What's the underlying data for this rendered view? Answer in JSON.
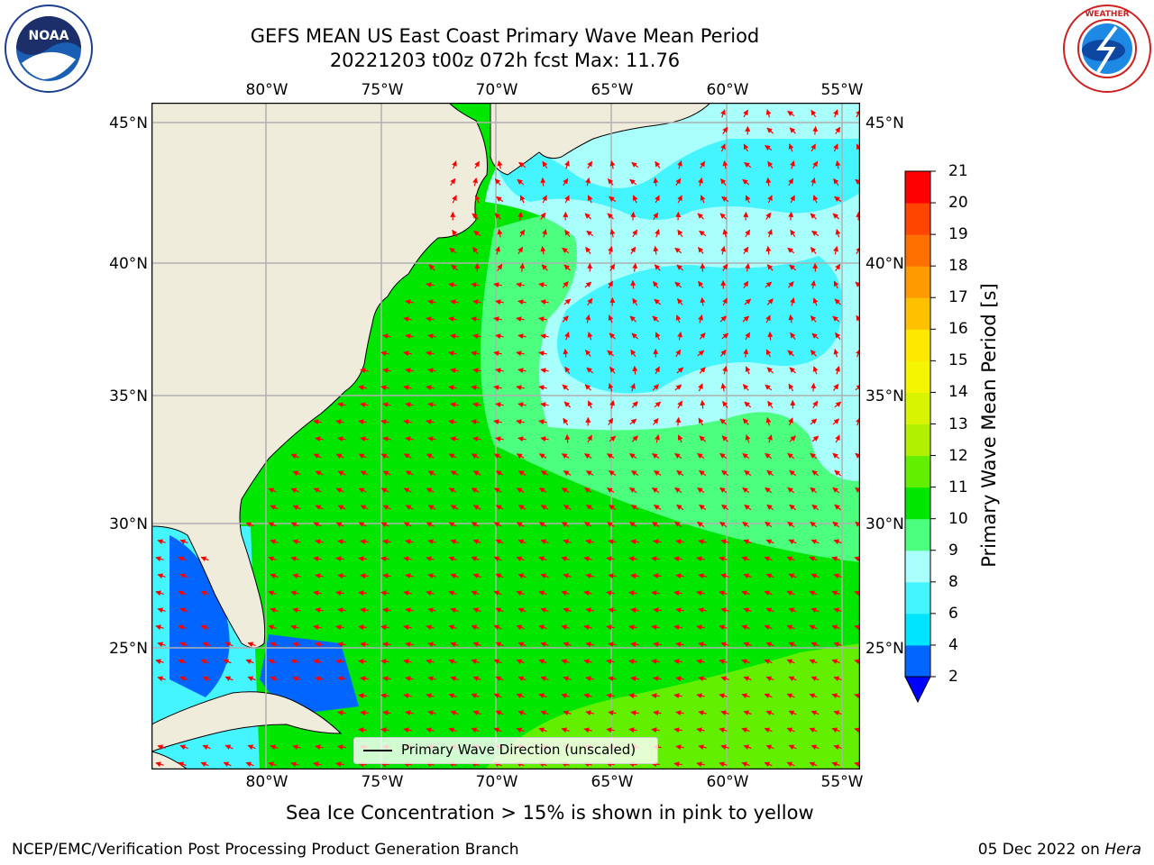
{
  "header": {
    "title_line1": "GEFS MEAN US East Coast Primary Wave Mean Period",
    "title_line2": "20221203 t00z 072h fcst   Max: 11.76"
  },
  "logos": {
    "left": "noaa-logo",
    "right": "nws-logo"
  },
  "map": {
    "lon_labels": [
      "80°W",
      "75°W",
      "70°W",
      "65°W",
      "60°W",
      "55°W"
    ],
    "lat_labels": [
      "45°N",
      "40°N",
      "35°N",
      "30°N",
      "25°N"
    ],
    "land_color": "#efecdc",
    "grid_color": "#b0b0b0",
    "arrow_color": "#ff0000",
    "legend_label": "Primary Wave Direction (unscaled)"
  },
  "colorbar": {
    "label": "Primary Wave Mean Period [s]",
    "ticks": [
      "2",
      "4",
      "6",
      "8",
      "9",
      "10",
      "11",
      "12",
      "13",
      "14",
      "15",
      "16",
      "17",
      "18",
      "19",
      "20",
      "21"
    ],
    "colors": [
      "#0066ff",
      "#00e5ff",
      "#44f4ff",
      "#a8fffc",
      "#4cff7f",
      "#00e600",
      "#63f000",
      "#b0f000",
      "#d8f400",
      "#f5f500",
      "#ffe800",
      "#ffc000",
      "#ff9a00",
      "#ff7000",
      "#ff4500",
      "#ff0000"
    ],
    "under_color": "#0000ff"
  },
  "caption": "Sea Ice Concentration > 15% is shown in pink to yellow",
  "footer": {
    "left": "NCEP/EMC/Verification Post Processing Product Generation Branch",
    "right_date": "05 Dec 2022 on ",
    "right_machine": "Hera"
  }
}
